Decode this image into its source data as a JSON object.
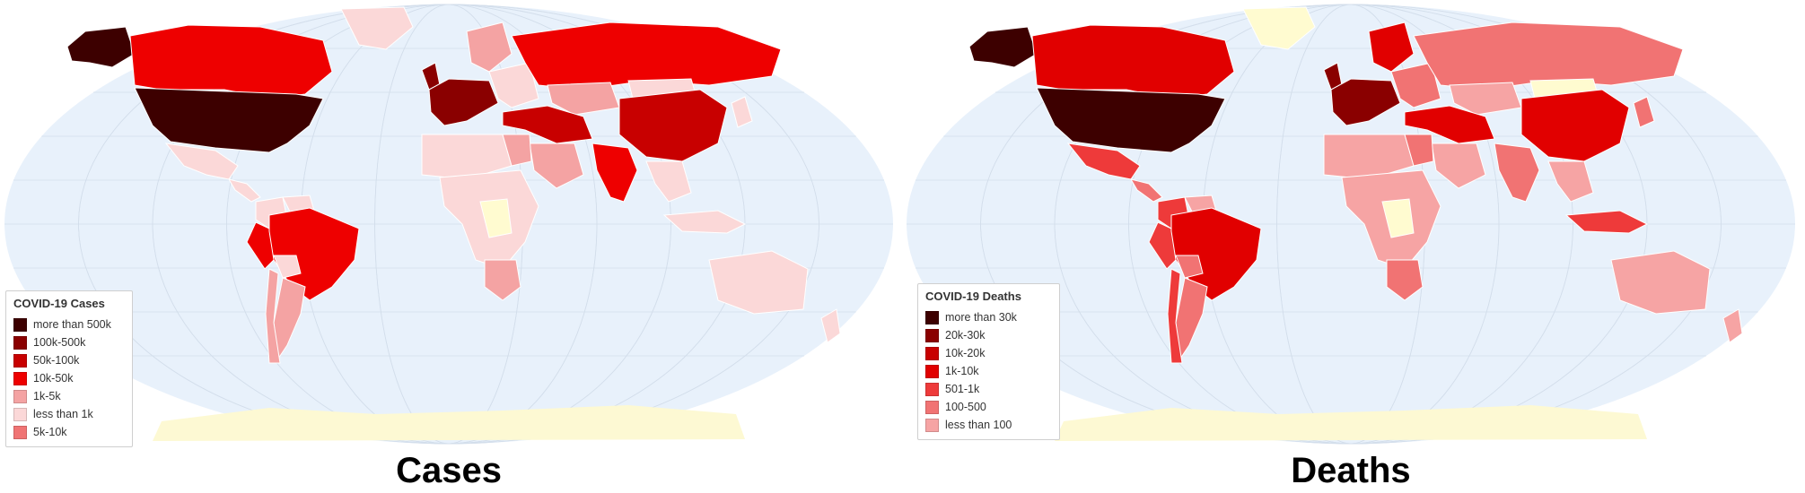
{
  "colors": {
    "ocean": "#e8f1fb",
    "graticule": "#d3deeb",
    "antarctica": "#fdf9d3",
    "no_data": "#fffbd0",
    "cases_scale": [
      "#3d0000",
      "#8a0000",
      "#c80000",
      "#ee0000",
      "#f4a3a3",
      "#fbd8d8",
      "#f07474"
    ],
    "deaths_scale": [
      "#3d0000",
      "#8a0000",
      "#c80000",
      "#e10000",
      "#ee3a3a",
      "#f17373",
      "#f6a4a4"
    ]
  },
  "cases": {
    "caption": "Cases",
    "legend": {
      "title": "COVID-19 Cases",
      "items": [
        {
          "label": "more than 500k",
          "color": "#3d0000"
        },
        {
          "label": "100k-500k",
          "color": "#8a0000"
        },
        {
          "label": "50k-100k",
          "color": "#c80000"
        },
        {
          "label": "10k-50k",
          "color": "#ee0000"
        },
        {
          "label": "1k-5k",
          "color": "#f4a3a3"
        },
        {
          "label": "less than 1k",
          "color": "#fbd8d8"
        },
        {
          "label": "5k-10k",
          "color": "#f07474"
        }
      ]
    },
    "regions": {
      "usa": "#3d0000",
      "alaska": "#3d0000",
      "canada": "#ee0000",
      "greenland": "#fbd8d8",
      "mexico": "#fbd8d8",
      "central_america": "#fbd8d8",
      "colombia": "#fbd8d8",
      "venezuela": "#fbd8d8",
      "brazil": "#ee0000",
      "peru": "#ee0000",
      "bolivia": "#fbd8d8",
      "argentina": "#f4a3a3",
      "chile": "#f4a3a3",
      "western_europe": "#8a0000",
      "uk": "#8a0000",
      "scandinavia": "#f4a3a3",
      "eastern_europe": "#fbd8d8",
      "russia": "#ee0000",
      "kazakhstan": "#f4a3a3",
      "turkey_iran": "#c80000",
      "india": "#ee0000",
      "china": "#c80000",
      "mongolia": "#fbd8d8",
      "se_asia": "#fbd8d8",
      "japan": "#fbd8d8",
      "north_africa": "#fbd8d8",
      "egypt": "#f4a3a3",
      "central_africa": "#fbd8d8",
      "drc": "#fffbd0",
      "south_africa": "#f4a3a3",
      "arabia": "#f4a3a3",
      "australia": "#fbd8d8",
      "nz": "#fbd8d8",
      "indonesia": "#fbd8d8"
    }
  },
  "deaths": {
    "caption": "Deaths",
    "legend": {
      "title": "COVID-19 Deaths",
      "items": [
        {
          "label": "more than 30k",
          "color": "#3d0000"
        },
        {
          "label": "20k-30k",
          "color": "#8a0000"
        },
        {
          "label": "10k-20k",
          "color": "#c80000"
        },
        {
          "label": "1k-10k",
          "color": "#e10000"
        },
        {
          "label": "501-1k",
          "color": "#ee3a3a"
        },
        {
          "label": "100-500",
          "color": "#f17373"
        },
        {
          "label": "less than 100",
          "color": "#f6a4a4"
        }
      ]
    },
    "regions": {
      "usa": "#3d0000",
      "alaska": "#3d0000",
      "canada": "#e10000",
      "greenland": "#fffbd0",
      "mexico": "#ee3a3a",
      "central_america": "#f17373",
      "colombia": "#ee3a3a",
      "venezuela": "#f6a4a4",
      "brazil": "#e10000",
      "peru": "#ee3a3a",
      "bolivia": "#f17373",
      "argentina": "#f17373",
      "chile": "#ee3a3a",
      "western_europe": "#8a0000",
      "uk": "#8a0000",
      "scandinavia": "#e10000",
      "eastern_europe": "#f17373",
      "russia": "#f17373",
      "kazakhstan": "#f6a4a4",
      "turkey_iran": "#e10000",
      "india": "#f17373",
      "china": "#e10000",
      "mongolia": "#fffbd0",
      "se_asia": "#f6a4a4",
      "japan": "#f17373",
      "north_africa": "#f6a4a4",
      "egypt": "#f17373",
      "central_africa": "#f6a4a4",
      "drc": "#fffbd0",
      "south_africa": "#f17373",
      "arabia": "#f6a4a4",
      "australia": "#f6a4a4",
      "nz": "#f6a4a4",
      "indonesia": "#ee3a3a"
    }
  }
}
